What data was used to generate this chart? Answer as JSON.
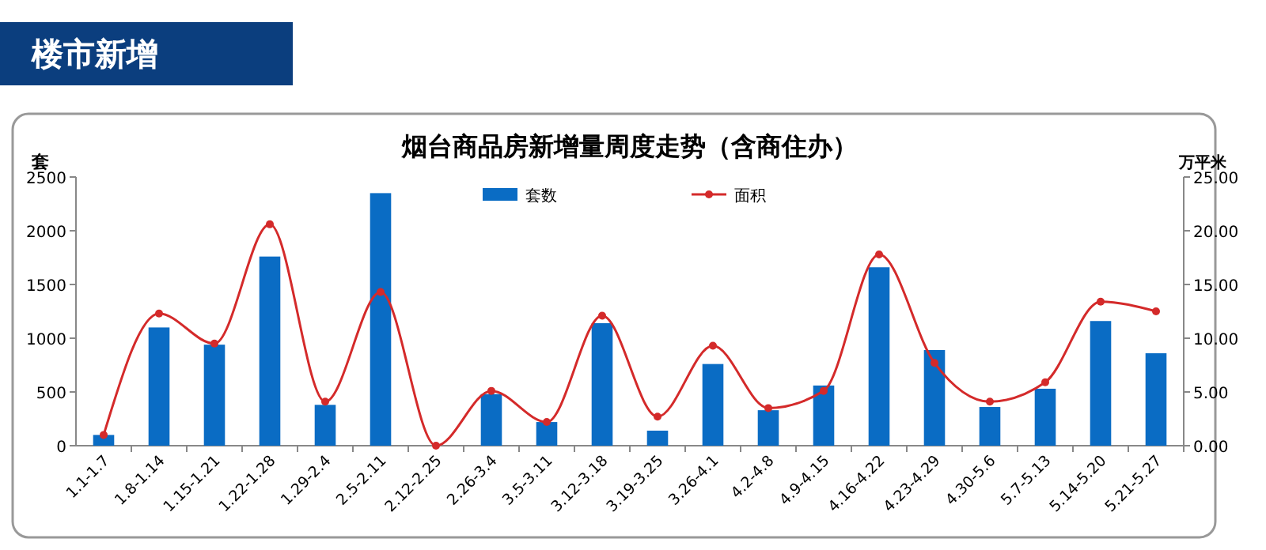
{
  "chart_data": {
    "type": "bar",
    "title": "烟台商品房新增量周度走势（含商住办）",
    "ylabel": "套",
    "y2label": "万平米",
    "annotations": [
      "楼市新增"
    ],
    "categories": [
      "1.1-1.7",
      "1.8-1.14",
      "1.15-1.21",
      "1.22-1.28",
      "1.29-2.4",
      "2.5-2.11",
      "2.12-2.25",
      "2.26-3.4",
      "3.5-3.11",
      "3.12-3.18",
      "3.19-3.25",
      "3.26-4.1",
      "4.2-4.8",
      "4.9-4.15",
      "4.16-4.22",
      "4.23-4.29",
      "4.30-5.6",
      "5.7-5.13",
      "5.14-5.20",
      "5.21-5.27"
    ],
    "series": [
      {
        "name": "套数",
        "color": "#0a6cc4",
        "values": [
          100,
          1100,
          940,
          1760,
          380,
          2350,
          0,
          480,
          220,
          1140,
          140,
          760,
          330,
          560,
          1660,
          890,
          360,
          530,
          1160,
          860
        ]
      },
      {
        "name": "面积",
        "type": "line",
        "axis": "y2",
        "color": "#d42a2a",
        "values": [
          1.0,
          12.3,
          9.5,
          20.6,
          4.1,
          14.3,
          0,
          5.1,
          2.2,
          12.1,
          2.7,
          9.3,
          3.5,
          5.1,
          17.8,
          7.7,
          4.1,
          5.9,
          13.4,
          12.5
        ]
      }
    ],
    "ylim": [
      0,
      2500
    ],
    "yticks": [
      0,
      500,
      1000,
      1500,
      2000,
      2500
    ],
    "y2lim": [
      0,
      25
    ],
    "y2ticks": [
      {
        "value": 0,
        "label": "0.00"
      },
      {
        "value": 5,
        "label": "5.00"
      },
      {
        "value": 10,
        "label": "10.00"
      },
      {
        "value": 15,
        "label": "15.00"
      },
      {
        "value": 20,
        "label": "20.00"
      },
      {
        "value": 25,
        "label": "25.00"
      }
    ],
    "legend": "top",
    "marker": "circle",
    "line_style": "solid",
    "grid": false
  }
}
